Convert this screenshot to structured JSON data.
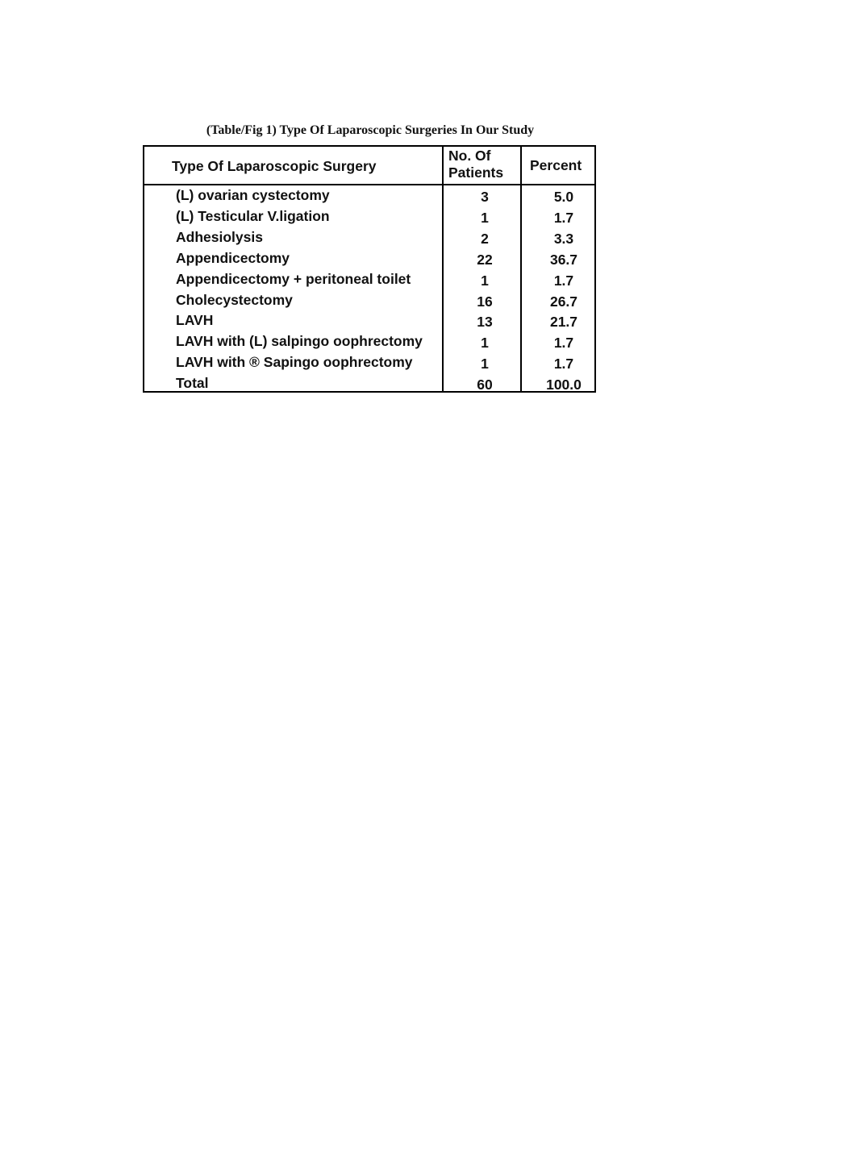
{
  "title": "(Table/Fig 1) Type Of Laparoscopic Surgeries In Our Study",
  "columns": [
    "Type Of Laparoscopic Surgery",
    "No. Of",
    "Patients",
    "Percent"
  ],
  "rows": [
    {
      "type": "(L) ovarian cystectomy",
      "patients": "3",
      "percent": "5.0"
    },
    {
      "type": "(L) Testicular V.ligation",
      "patients": "1",
      "percent": "1.7"
    },
    {
      "type": "Adhesiolysis",
      "patients": "2",
      "percent": "3.3"
    },
    {
      "type": "Appendicectomy",
      "patients": "22",
      "percent": "36.7"
    },
    {
      "type": "Appendicectomy + peritoneal toilet",
      "patients": "1",
      "percent": "1.7"
    },
    {
      "type": "Cholecystectomy",
      "patients": "16",
      "percent": "26.7"
    },
    {
      "type": "LAVH",
      "patients": "13",
      "percent": "21.7"
    },
    {
      "type": "LAVH with (L) salpingo oophrectomy",
      "patients": "1",
      "percent": "1.7"
    },
    {
      "type": "LAVH with ® Sapingo oophrectomy",
      "patients": "1",
      "percent": "1.7"
    },
    {
      "type": "Total",
      "patients": "60",
      "percent": "100.0"
    }
  ]
}
